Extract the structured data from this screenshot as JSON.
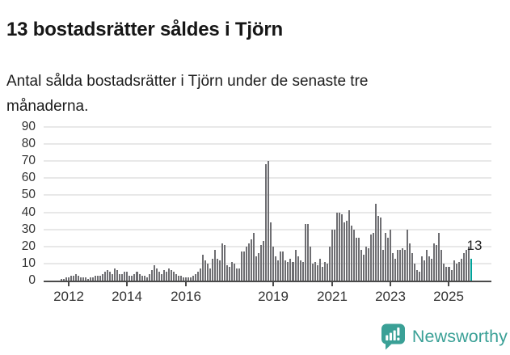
{
  "header": {
    "title": "13 bostadsrätter såldes i Tjörn",
    "subtitle": "Antal sålda bostadsrätter i Tjörn under de senaste tre månaderna."
  },
  "chart_data": {
    "type": "bar",
    "title": "13 bostadsrätter såldes i Tjörn",
    "xlabel": "",
    "ylabel": "",
    "ylim": [
      0,
      90
    ],
    "yticks": [
      0,
      10,
      20,
      30,
      40,
      50,
      60,
      70,
      80,
      90
    ],
    "grid": true,
    "legend": false,
    "x_start": "2011-10",
    "x_interval": "month",
    "values": [
      1,
      1,
      2,
      2,
      3,
      3,
      4,
      3,
      2,
      2,
      2,
      1,
      2,
      2,
      3,
      3,
      3,
      4,
      5,
      6,
      5,
      4,
      7,
      6,
      4,
      4,
      5,
      5,
      3,
      3,
      4,
      5,
      4,
      3,
      3,
      2,
      4,
      6,
      9,
      7,
      5,
      4,
      6,
      5,
      7,
      6,
      5,
      4,
      3,
      3,
      2,
      2,
      2,
      2,
      3,
      4,
      5,
      7,
      15,
      12,
      10,
      7,
      13,
      18,
      13,
      12,
      22,
      21,
      9,
      8,
      11,
      10,
      7,
      7,
      17,
      17,
      20,
      22,
      24,
      28,
      14,
      16,
      21,
      23,
      68,
      70,
      34,
      20,
      14,
      12,
      17,
      17,
      12,
      11,
      13,
      11,
      18,
      14,
      12,
      11,
      33,
      33,
      20,
      10,
      11,
      9,
      13,
      8,
      11,
      10,
      20,
      30,
      30,
      40,
      40,
      39,
      34,
      35,
      41,
      32,
      30,
      25,
      25,
      18,
      15,
      20,
      19,
      27,
      28,
      45,
      38,
      37,
      18,
      28,
      25,
      30,
      16,
      13,
      18,
      18,
      19,
      18,
      30,
      22,
      16,
      10,
      6,
      5,
      14,
      12,
      18,
      14,
      13,
      22,
      21,
      28,
      18,
      10,
      8,
      8,
      6,
      12,
      10,
      11,
      13,
      16,
      18,
      20,
      13
    ],
    "xticks": [
      {
        "label": "2012",
        "month_index": 3
      },
      {
        "label": "2014",
        "month_index": 27
      },
      {
        "label": "2016",
        "month_index": 51
      },
      {
        "label": "2019",
        "month_index": 87
      },
      {
        "label": "2021",
        "month_index": 111
      },
      {
        "label": "2023",
        "month_index": 135
      },
      {
        "label": "2025",
        "month_index": 159
      }
    ],
    "bar_color": "#6e6e72",
    "highlight": {
      "index": 168,
      "value": 13,
      "label": "13",
      "color": "#00a29a"
    }
  },
  "footer": {
    "brand": "Newsworthy",
    "brand_color": "#3aa096"
  }
}
